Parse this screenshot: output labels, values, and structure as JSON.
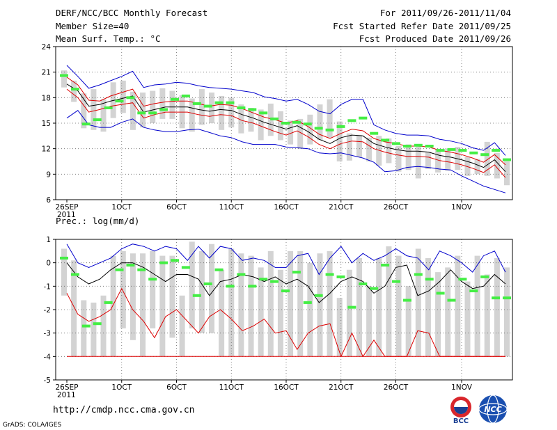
{
  "header": {
    "title": "DERF/NCC/BCC Monthly Forecast",
    "member_size": "Member Size=40",
    "variable": "Mean Surf. Temp.: °C",
    "period": "For 2011/09/26-2011/11/04",
    "started": "Fcst Started Refer Date 2011/09/25",
    "produced": "Fcst Produced Date 2011/09/26"
  },
  "footer": {
    "url": "http://cmdp.ncc.cma.gov.cn",
    "grads": "GrADS: COLA/IGES",
    "logo_bcc": "BCC",
    "logo_ncc": "NCC"
  },
  "colors": {
    "box": "#d3d3d3",
    "obs": "#44ee44",
    "envelope": "#0000cc",
    "spread": "#dd0000",
    "mean": "#000000",
    "grid": "#666666"
  },
  "chart_data": [
    {
      "type": "line",
      "title": "Mean Surf. Temp.: °C",
      "ylim": [
        6,
        24
      ],
      "yticks": [
        6,
        9,
        12,
        15,
        18,
        21,
        24
      ],
      "xticks": [
        {
          "day": 0,
          "label": "26SEP",
          "sub": "2011"
        },
        {
          "day": 5,
          "label": "1OCT"
        },
        {
          "day": 10,
          "label": "6OCT"
        },
        {
          "day": 15,
          "label": "11OCT"
        },
        {
          "day": 20,
          "label": "16OCT"
        },
        {
          "day": 25,
          "label": "21OCT"
        },
        {
          "day": 30,
          "label": "26OCT"
        },
        {
          "day": 36,
          "label": "1NOV"
        }
      ],
      "days": 40,
      "series": [
        {
          "name": "max",
          "values": [
            21.8,
            20.5,
            19.1,
            19.5,
            20.0,
            20.5,
            21.1,
            19.2,
            19.5,
            19.6,
            19.8,
            19.7,
            19.4,
            19.2,
            19.1,
            19.0,
            18.8,
            18.6,
            18.1,
            17.9,
            17.6,
            17.8,
            17.2,
            16.4,
            16.1,
            17.2,
            17.8,
            17.8,
            14.8,
            14.2,
            13.8,
            13.6,
            13.6,
            13.5,
            13.1,
            12.9,
            12.6,
            12.1,
            11.8,
            12.7,
            11.2
          ]
        },
        {
          "name": "upper",
          "values": [
            20.4,
            19.5,
            17.7,
            17.6,
            18.2,
            18.6,
            19.0,
            17.0,
            17.3,
            17.5,
            17.6,
            17.6,
            17.3,
            17.0,
            17.2,
            17.1,
            16.7,
            16.2,
            15.7,
            15.4,
            15.0,
            15.3,
            14.6,
            13.7,
            13.2,
            13.8,
            14.3,
            14.1,
            13.2,
            12.8,
            12.6,
            12.3,
            12.3,
            12.2,
            11.8,
            11.6,
            11.3,
            10.9,
            10.4,
            11.3,
            10.1
          ]
        },
        {
          "name": "mean",
          "values": [
            19.6,
            18.8,
            17.0,
            17.2,
            17.6,
            17.9,
            18.2,
            16.3,
            16.6,
            16.9,
            16.9,
            16.9,
            16.6,
            16.4,
            16.6,
            16.5,
            16.0,
            15.6,
            15.1,
            14.7,
            14.3,
            14.7,
            14.0,
            13.1,
            12.6,
            13.3,
            13.6,
            13.5,
            12.6,
            12.2,
            11.9,
            11.7,
            11.7,
            11.6,
            11.2,
            11.0,
            10.7,
            10.3,
            9.8,
            10.7,
            9.3
          ]
        },
        {
          "name": "lower",
          "values": [
            19.0,
            18.0,
            16.3,
            16.6,
            17.0,
            17.2,
            17.4,
            15.6,
            16.0,
            16.3,
            16.3,
            16.3,
            16.0,
            15.8,
            16.0,
            15.9,
            15.3,
            15.0,
            14.5,
            14.0,
            13.6,
            14.1,
            13.4,
            12.5,
            12.0,
            12.6,
            12.9,
            12.8,
            12.0,
            11.6,
            11.3,
            11.1,
            11.1,
            11.0,
            10.6,
            10.4,
            10.1,
            9.7,
            9.2,
            10.1,
            8.6
          ]
        },
        {
          "name": "min",
          "values": [
            15.6,
            16.5,
            14.8,
            14.5,
            14.5,
            15.1,
            15.5,
            14.5,
            14.2,
            14.0,
            14.0,
            14.2,
            14.3,
            13.9,
            13.5,
            13.3,
            12.8,
            12.5,
            12.5,
            12.5,
            12.2,
            12.1,
            12.0,
            11.5,
            11.4,
            11.5,
            11.2,
            10.9,
            10.4,
            9.3,
            9.4,
            9.8,
            9.9,
            9.8,
            9.6,
            9.5,
            8.8,
            8.2,
            7.6,
            7.2,
            6.8
          ]
        }
      ],
      "boxes": [
        [
          19.2,
          21.2
        ],
        [
          17.5,
          20.0
        ],
        [
          14.4,
          18.5
        ],
        [
          14.2,
          19.0
        ],
        [
          14.0,
          17.8
        ],
        [
          15.6,
          19.8
        ],
        [
          16.2,
          20.0
        ],
        [
          14.2,
          18.7
        ],
        [
          14.5,
          18.6
        ],
        [
          15.0,
          18.8
        ],
        [
          15.5,
          19.1
        ],
        [
          15.5,
          18.8
        ],
        [
          14.4,
          18.3
        ],
        [
          14.0,
          17.9
        ],
        [
          14.8,
          19.0
        ],
        [
          15.0,
          18.6
        ],
        [
          14.2,
          18.2
        ],
        [
          14.5,
          18.0
        ],
        [
          13.8,
          17.2
        ],
        [
          14.0,
          16.8
        ],
        [
          13.0,
          16.6
        ],
        [
          13.5,
          17.3
        ],
        [
          13.0,
          16.4
        ],
        [
          12.5,
          15.3
        ],
        [
          12.0,
          15.5
        ],
        [
          12.5,
          16.0
        ],
        [
          13.0,
          17.2
        ],
        [
          13.3,
          17.8
        ],
        [
          10.5,
          15.2
        ],
        [
          10.6,
          13.8
        ],
        [
          11.0,
          13.6
        ],
        [
          10.5,
          13.3
        ],
        [
          10.0,
          13.5
        ],
        [
          10.3,
          13.2
        ],
        [
          9.3,
          12.3
        ],
        [
          9.5,
          12.5
        ],
        [
          8.5,
          12.3
        ],
        [
          9.6,
          11.6
        ],
        [
          9.2,
          12.0
        ],
        [
          9.4,
          12.0
        ],
        [
          9.5,
          12.2
        ],
        [
          8.8,
          11.0
        ],
        [
          9.0,
          10.8
        ],
        [
          8.8,
          12.8
        ],
        [
          8.5,
          11.5
        ],
        [
          7.7,
          10.5
        ]
      ],
      "obs": [
        20.6,
        19.0,
        14.9,
        15.4,
        16.8,
        17.6,
        18.0,
        16.2,
        16.2,
        16.6,
        17.8,
        18.2,
        17.3,
        17.0,
        17.4,
        17.4,
        16.8,
        16.6,
        16.2,
        15.5,
        15.0,
        15.1,
        14.9,
        14.4,
        14.2,
        14.6,
        15.3,
        15.6,
        13.8,
        13.0,
        12.6,
        12.3,
        12.4,
        12.3,
        11.8,
        11.9,
        11.8,
        11.5,
        11.3,
        11.8,
        10.7
      ]
    },
    {
      "type": "line",
      "title": "Prec.: log(mm/d)",
      "ylim": [
        -5,
        1
      ],
      "yticks": [
        -5,
        -4,
        -3,
        -2,
        -1,
        0,
        1
      ],
      "xticks": [
        {
          "day": 0,
          "label": "26SEP",
          "sub": "2011"
        },
        {
          "day": 5,
          "label": "1OCT"
        },
        {
          "day": 10,
          "label": "6OCT"
        },
        {
          "day": 15,
          "label": "11OCT"
        },
        {
          "day": 20,
          "label": "16OCT"
        },
        {
          "day": 25,
          "label": "21OCT"
        },
        {
          "day": 30,
          "label": "26OCT"
        },
        {
          "day": 36,
          "label": "1NOV"
        }
      ],
      "days": 40,
      "series": [
        {
          "name": "upper",
          "values": [
            0.8,
            0.0,
            -0.2,
            0.0,
            0.2,
            0.6,
            0.8,
            0.7,
            0.5,
            0.7,
            0.6,
            0.1,
            0.7,
            0.2,
            0.7,
            0.6,
            0.1,
            0.2,
            0.1,
            -0.2,
            -0.2,
            0.3,
            0.4,
            -0.5,
            0.2,
            0.7,
            0.0,
            0.4,
            0.1,
            0.3,
            0.6,
            0.3,
            0.2,
            -0.3,
            0.5,
            0.3,
            0.0,
            -0.4,
            0.3,
            0.5,
            -0.4
          ]
        },
        {
          "name": "mean",
          "values": [
            0.0,
            -0.6,
            -0.9,
            -0.7,
            -0.3,
            0.0,
            0.0,
            -0.2,
            -0.5,
            -0.8,
            -0.5,
            -0.5,
            -0.7,
            -1.4,
            -0.8,
            -0.7,
            -0.5,
            -0.6,
            -0.8,
            -0.6,
            -0.9,
            -0.7,
            -1.0,
            -1.7,
            -1.3,
            -0.8,
            -0.6,
            -0.8,
            -1.3,
            -1.0,
            -0.2,
            -0.1,
            -1.4,
            -1.2,
            -0.8,
            -0.3,
            -0.8,
            -1.1,
            -1.0,
            -0.5,
            -0.9
          ]
        },
        {
          "name": "lower",
          "values": [
            -1.3,
            -2.2,
            -2.5,
            -2.3,
            -2.0,
            -1.1,
            -2.0,
            -2.5,
            -3.2,
            -2.3,
            -2.0,
            -2.5,
            -3.0,
            -2.3,
            -2.0,
            -2.4,
            -2.9,
            -2.7,
            -2.4,
            -3.0,
            -2.9,
            -3.7,
            -3.0,
            -2.7,
            -2.6,
            -4.0,
            -3.0,
            -4.0,
            -3.3,
            -4.0,
            -4.0,
            -4.0,
            -2.9,
            -3.0,
            -4.0,
            -4.0,
            -4.0,
            -4.0,
            -4.0,
            -4.0,
            -4.0
          ]
        },
        {
          "name": "floor",
          "values": [
            -4.0,
            -4.0,
            -4.0,
            -4.0,
            -4.0,
            -4.0,
            -4.0,
            -4.0,
            -4.0,
            -4.0,
            -4.0,
            -4.0,
            -4.0,
            -4.0,
            -4.0,
            -4.0,
            -4.0,
            -4.0,
            -4.0,
            -4.0,
            -4.0,
            -4.0,
            -4.0,
            -4.0,
            -4.0,
            -4.0,
            -4.0,
            -4.0,
            -4.0,
            -4.0,
            -4.0,
            -4.0,
            -4.0,
            -4.0,
            -4.0,
            -4.0,
            -4.0,
            -4.0,
            -4.0,
            -4.0,
            -4.0
          ]
        }
      ],
      "boxes": [
        [
          -1.4,
          0.6
        ],
        [
          -4.0,
          0.1
        ],
        [
          -4.0,
          -1.6
        ],
        [
          -4.0,
          -1.7
        ],
        [
          -4.0,
          -1.4
        ],
        [
          -4.0,
          0.3
        ],
        [
          -2.8,
          0.5
        ],
        [
          -3.3,
          0.4
        ],
        [
          -4.0,
          0.4
        ],
        [
          -2.8,
          0.5
        ],
        [
          -4.0,
          0.3
        ],
        [
          -3.2,
          0.3
        ],
        [
          -4.0,
          -1.4
        ],
        [
          -2.8,
          0.9
        ],
        [
          -3.0,
          0.5
        ],
        [
          -3.0,
          0.8
        ],
        [
          -4.0,
          -0.3
        ],
        [
          -4.0,
          0.6
        ],
        [
          -4.0,
          0.4
        ],
        [
          -4.0,
          0.3
        ],
        [
          -4.0,
          -0.2
        ],
        [
          -4.0,
          0.5
        ],
        [
          -4.0,
          -0.3
        ],
        [
          -4.0,
          0.5
        ],
        [
          -4.0,
          0.5
        ],
        [
          -4.0,
          0.0
        ],
        [
          -4.0,
          0.4
        ],
        [
          -4.0,
          0.5
        ],
        [
          -4.0,
          -1.5
        ],
        [
          -4.0,
          -0.3
        ],
        [
          -4.0,
          0.2
        ],
        [
          -4.0,
          -1.0
        ],
        [
          -4.0,
          0.2
        ],
        [
          -4.0,
          0.7
        ],
        [
          -4.0,
          0.3
        ],
        [
          -4.0,
          -1.0
        ],
        [
          -4.0,
          0.6
        ],
        [
          -4.0,
          0.2
        ],
        [
          -4.0,
          -0.4
        ],
        [
          -4.0,
          -0.2
        ],
        [
          -4.0,
          0.3
        ],
        [
          -4.0,
          -0.8
        ],
        [
          -4.0,
          0.3
        ],
        [
          -4.0,
          -0.5
        ],
        [
          -4.0,
          0.2
        ],
        [
          -4.0,
          -0.2
        ]
      ],
      "obs": [
        0.2,
        -0.5,
        -2.7,
        -2.6,
        -1.7,
        -0.3,
        -0.1,
        -0.3,
        -0.7,
        0.0,
        0.1,
        -0.2,
        -1.4,
        -0.9,
        -0.3,
        -1.0,
        -0.5,
        -1.0,
        -0.7,
        -0.8,
        -1.2,
        -0.4,
        -1.7,
        -1.4,
        -0.5,
        -0.6,
        -1.9,
        -0.9,
        -1.1,
        -0.1,
        -0.8,
        -1.6,
        -0.5,
        -0.7,
        -1.3,
        -1.6,
        -0.7,
        -1.2,
        -0.6,
        -1.5,
        -1.5
      ]
    }
  ]
}
